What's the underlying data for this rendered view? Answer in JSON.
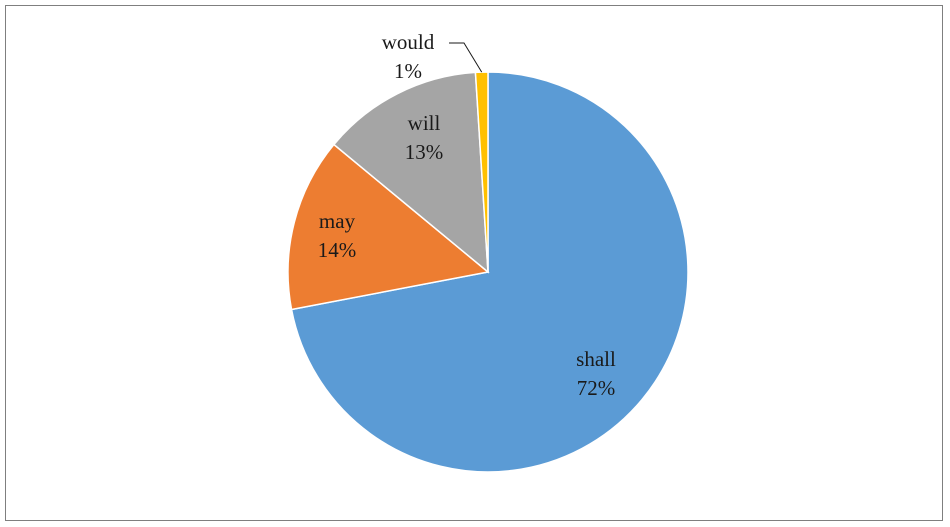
{
  "chart_data": {
    "type": "pie",
    "slices": [
      {
        "label": "shall",
        "value": 72,
        "percent_label": "72%",
        "color": "#5b9bd5"
      },
      {
        "label": "may",
        "value": 14,
        "percent_label": "14%",
        "color": "#ed7d31"
      },
      {
        "label": "will",
        "value": 13,
        "percent_label": "13%",
        "color": "#a5a5a5"
      },
      {
        "label": "would",
        "value": 1,
        "percent_label": "1%",
        "color": "#ffc000"
      }
    ],
    "start_angle": "12 o'clock",
    "direction": "clockwise",
    "legend": "none",
    "data_labels": "category name and percentage"
  }
}
